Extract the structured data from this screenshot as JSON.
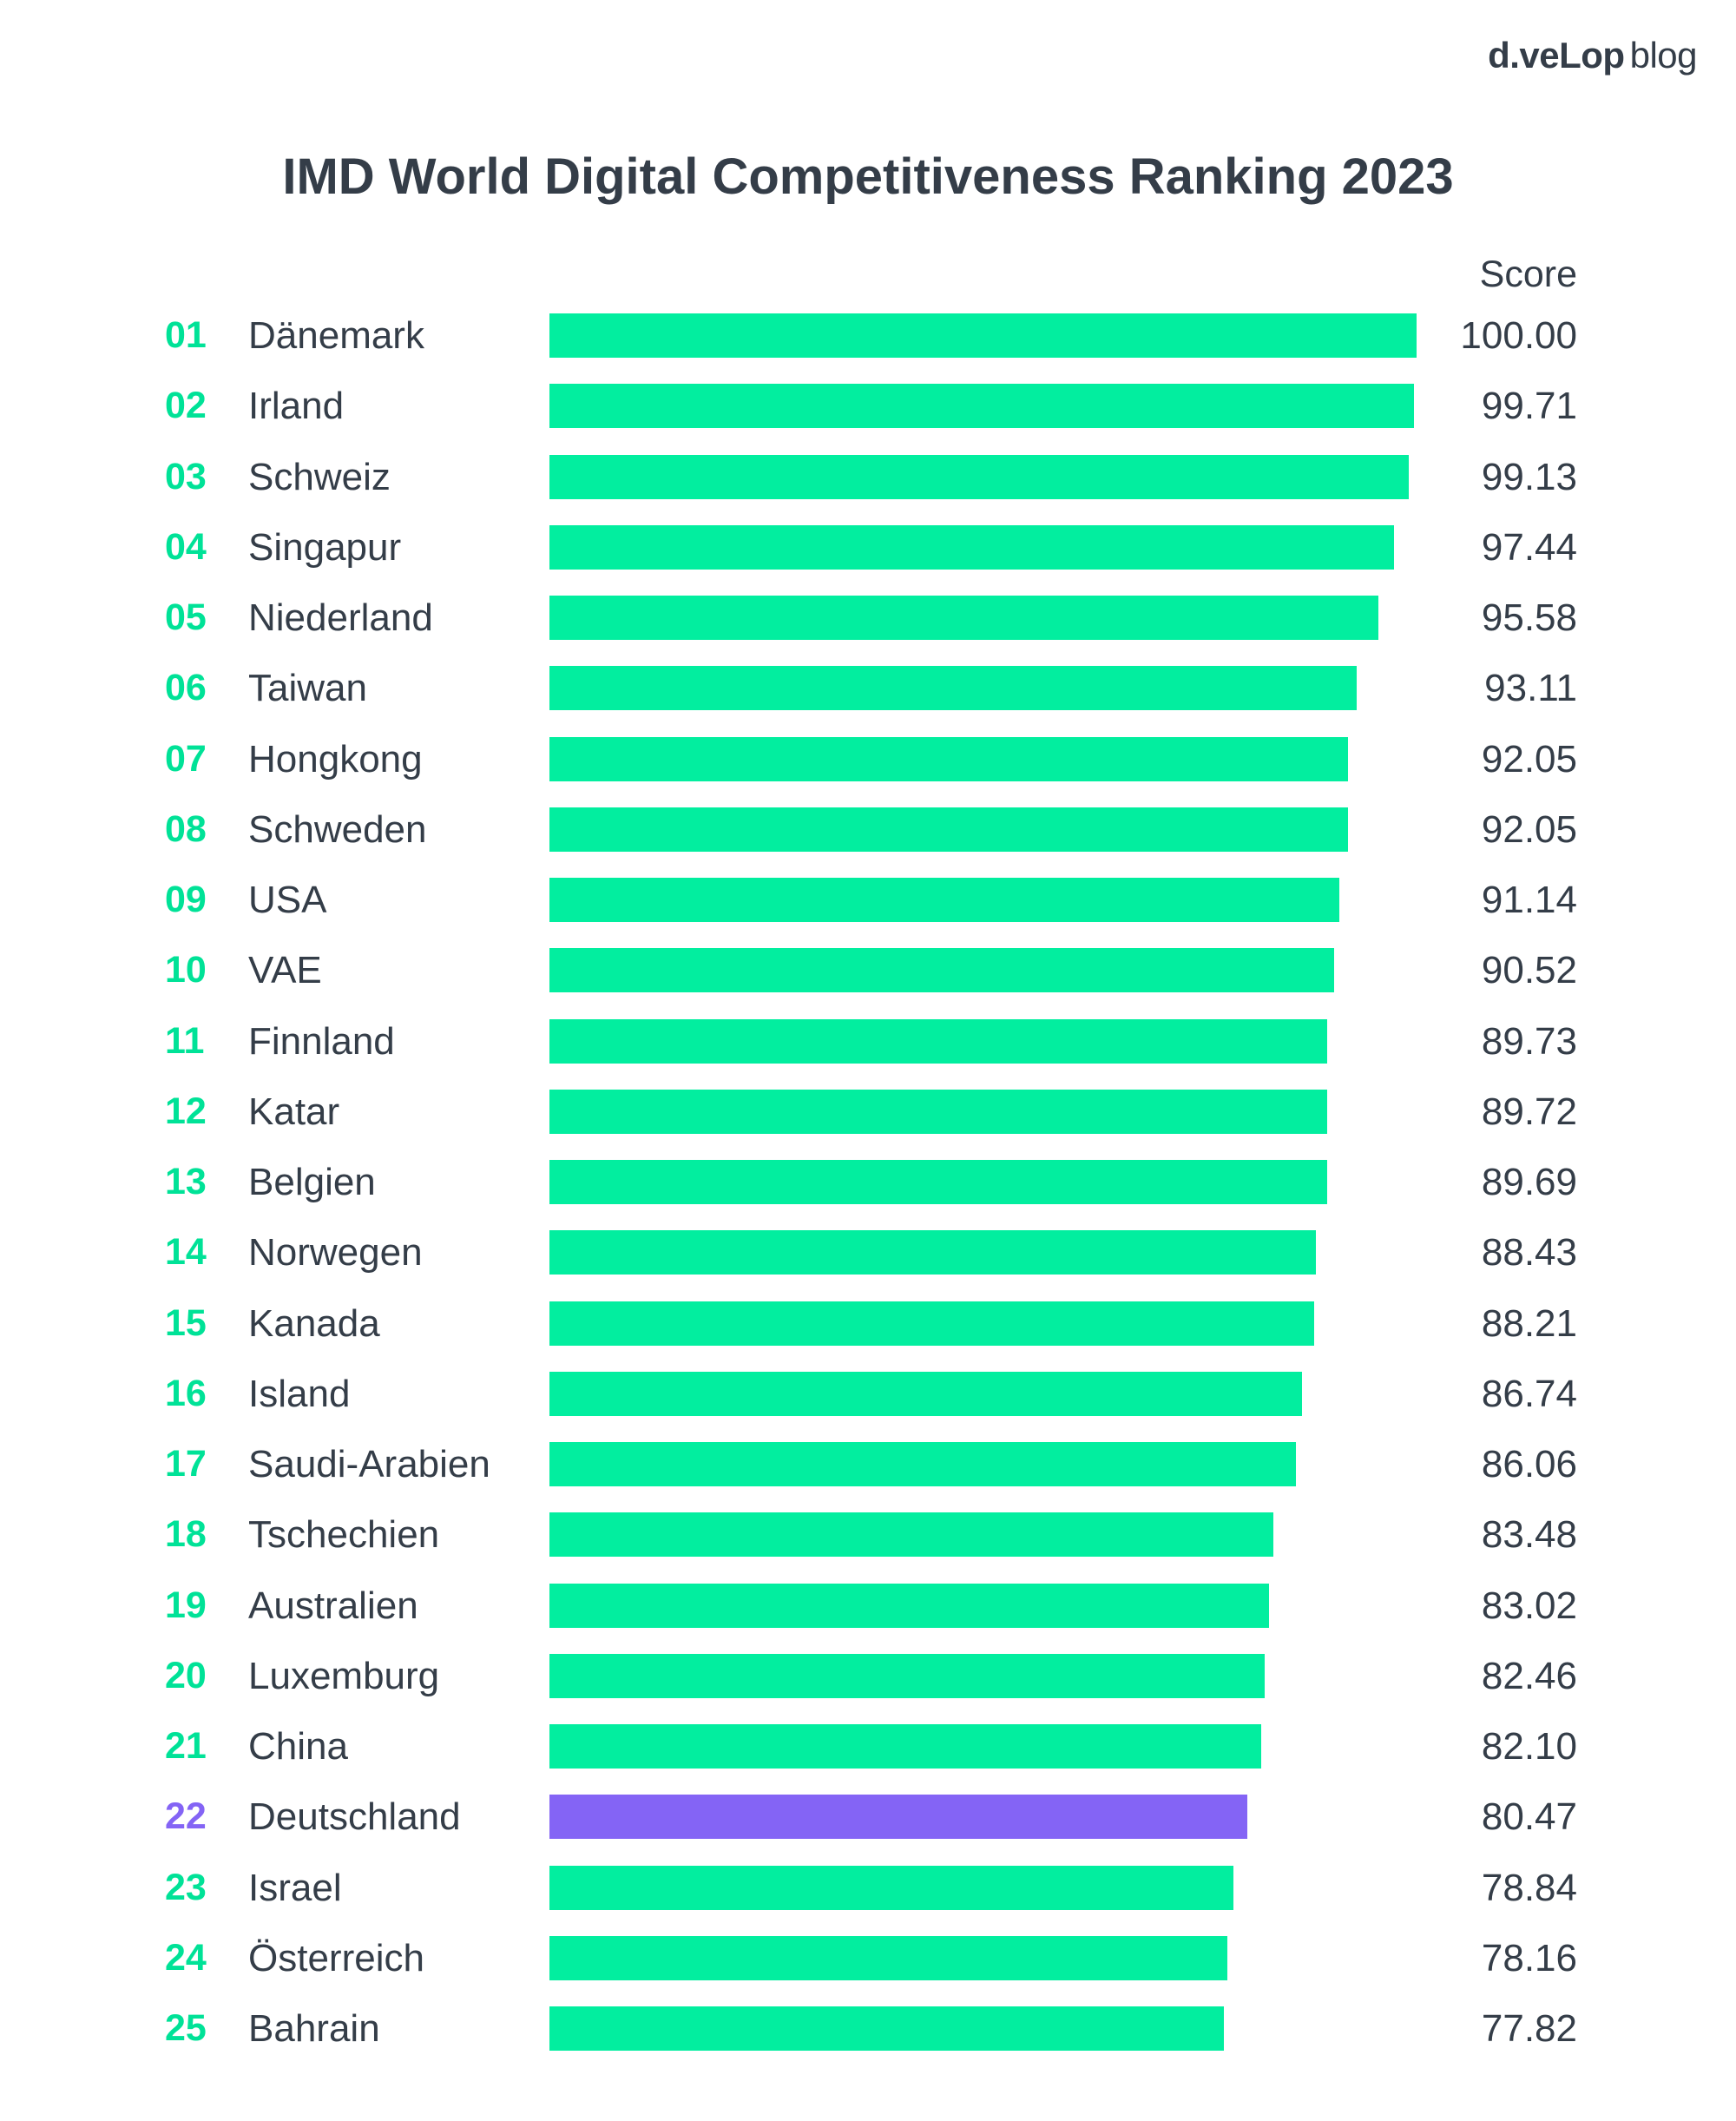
{
  "logo": {
    "brand": "d.veLop",
    "suffix": "blog"
  },
  "chart_data": {
    "type": "bar",
    "orientation": "horizontal",
    "title": "IMD World Digital Competitiveness Ranking 2023",
    "value_header": "Score",
    "xlim": [
      0,
      100
    ],
    "grid": false,
    "colors": {
      "default": "#02ee9f",
      "highlight": "#8464f5",
      "rank_default": "#00e297",
      "rank_highlight": "#8464f5"
    },
    "highlight": "Deutschland",
    "ranks": [
      "01",
      "02",
      "03",
      "04",
      "05",
      "06",
      "07",
      "08",
      "09",
      "10",
      "11",
      "12",
      "13",
      "14",
      "15",
      "16",
      "17",
      "18",
      "19",
      "20",
      "21",
      "22",
      "23",
      "24",
      "25"
    ],
    "categories": [
      "Dänemark",
      "Irland",
      "Schweiz",
      "Singapur",
      "Niederland",
      "Taiwan",
      "Hongkong",
      "Schweden",
      "USA",
      "VAE",
      "Finnland",
      "Katar",
      "Belgien",
      "Norwegen",
      "Kanada",
      "Island",
      "Saudi-Arabien",
      "Tschechien",
      "Australien",
      "Luxemburg",
      "China",
      "Deutschland",
      "Israel",
      "Österreich",
      "Bahrain"
    ],
    "labels": [
      "100.00",
      "99.71",
      "99.13",
      "97.44",
      "95.58",
      "93.11",
      "92.05",
      "92.05",
      "91.14",
      "90.52",
      "89.73",
      "89.72",
      "89.69",
      "88.43",
      "88.21",
      "86.74",
      "86.06",
      "83.48",
      "83.02",
      "82.46",
      "82.10",
      "80.47",
      "78.84",
      "78.16",
      "77.82"
    ],
    "values": [
      100.0,
      99.71,
      99.13,
      97.44,
      95.58,
      93.11,
      92.05,
      92.05,
      91.14,
      90.52,
      89.73,
      89.72,
      89.69,
      88.43,
      88.21,
      86.74,
      86.06,
      83.48,
      83.02,
      82.46,
      82.1,
      80.47,
      78.84,
      78.16,
      77.82
    ]
  }
}
